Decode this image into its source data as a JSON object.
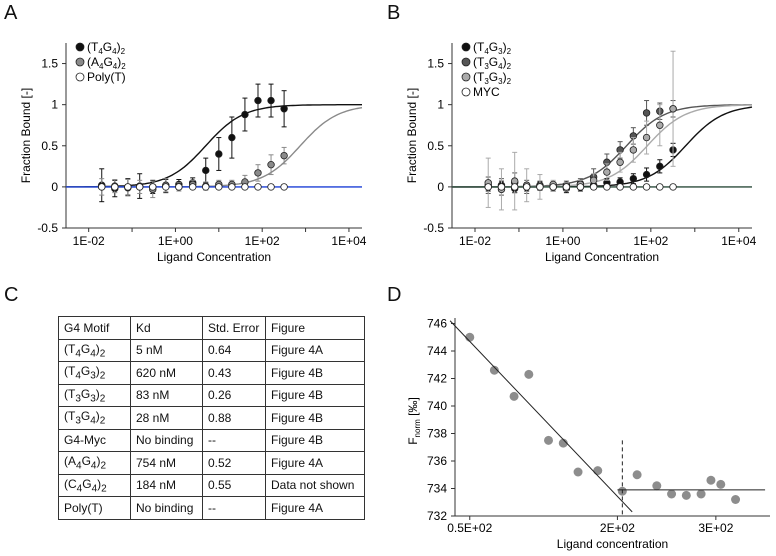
{
  "panels": {
    "a": "A",
    "b": "B",
    "c": "C",
    "d": "D"
  },
  "chart_data": [
    {
      "id": "A",
      "type": "scatter",
      "xlabel": "Ligand Concentration",
      "ylabel": "Fraction Bound [-]",
      "xscale": "log",
      "xlim": [
        0.003,
        20000
      ],
      "ylim": [
        -0.5,
        1.75
      ],
      "xticks": [
        0.01,
        1,
        100,
        10000
      ],
      "xtick_labels": [
        "1E-02",
        "1E+00",
        "1E+02",
        "1E+04"
      ],
      "yticks": [
        -0.5,
        0,
        0.5,
        1,
        1.5
      ],
      "ytick_labels": [
        "-0.5",
        "0",
        "0.5",
        "1",
        "1.5"
      ],
      "legend": "top-left",
      "series": [
        {
          "name": "(T4G4)2",
          "base": "(T",
          "s1": "4",
          "mid": "G",
          "s2": "4",
          "end": ")",
          "s3": "2",
          "color": "#111111",
          "marker": "#111111",
          "fit": {
            "kd": 5,
            "top": 1.0
          },
          "x": [
            0.02,
            0.04,
            0.08,
            0.15,
            0.3,
            0.6,
            1.2,
            2.5,
            5,
            10,
            20,
            40,
            80,
            160,
            320
          ],
          "y": [
            0.02,
            -0.02,
            0.0,
            0.01,
            0.0,
            0.01,
            0.03,
            0.05,
            0.2,
            0.4,
            0.6,
            0.88,
            1.05,
            1.05,
            0.95
          ],
          "err": [
            0.2,
            0.1,
            0.1,
            0.15,
            0.08,
            0.08,
            0.06,
            0.06,
            0.15,
            0.2,
            0.25,
            0.2,
            0.2,
            0.2,
            0.22
          ]
        },
        {
          "name": "(A4G4)2",
          "base": "(A",
          "s1": "4",
          "mid": "G",
          "s2": "4",
          "end": ")",
          "s3": "2",
          "color": "#8a8a8a",
          "marker": "#8a8a8a",
          "fit": {
            "kd": 754,
            "top": 1.0
          },
          "x": [
            0.02,
            0.04,
            0.08,
            0.15,
            0.3,
            0.6,
            1.2,
            2.5,
            5,
            10,
            20,
            40,
            80,
            160,
            320
          ],
          "y": [
            0.0,
            0.01,
            -0.01,
            0.0,
            -0.03,
            0.02,
            0.0,
            0.03,
            0.01,
            0.03,
            0.03,
            0.06,
            0.17,
            0.27,
            0.38
          ],
          "err": [
            0.1,
            0.08,
            0.1,
            0.08,
            0.1,
            0.08,
            0.05,
            0.05,
            0.05,
            0.05,
            0.05,
            0.08,
            0.1,
            0.12,
            0.1
          ]
        },
        {
          "name": "Poly(T)",
          "color": "#1a3fd6",
          "marker": "#ffffff",
          "fit": {
            "kd": null,
            "top": 0
          },
          "x": [
            0.02,
            0.04,
            0.08,
            0.15,
            0.3,
            0.6,
            1.2,
            2.5,
            5,
            10,
            20,
            40,
            80,
            160,
            320
          ],
          "y": [
            0,
            0,
            0,
            0,
            0,
            0,
            0,
            0,
            0,
            0,
            0,
            0,
            0,
            0,
            0
          ],
          "err": [
            0,
            0,
            0,
            0,
            0,
            0,
            0,
            0,
            0,
            0,
            0,
            0,
            0,
            0,
            0
          ]
        }
      ]
    },
    {
      "id": "B",
      "type": "scatter",
      "xlabel": "Ligand Concentration",
      "ylabel": "Fraction Bound [-]",
      "xscale": "log",
      "xlim": [
        0.003,
        20000
      ],
      "ylim": [
        -0.5,
        1.75
      ],
      "xticks": [
        0.01,
        1,
        100,
        10000
      ],
      "xtick_labels": [
        "1E-02",
        "1E+00",
        "1E+02",
        "1E+04"
      ],
      "yticks": [
        -0.5,
        0,
        0.5,
        1,
        1.5
      ],
      "ytick_labels": [
        "-0.5",
        "0",
        "0.5",
        "1",
        "1.5"
      ],
      "legend": "top-left",
      "series": [
        {
          "name": "(T4G3)2",
          "base": "(T",
          "s1": "4",
          "mid": "G",
          "s2": "3",
          "end": ")",
          "s3": "2",
          "color": "#111111",
          "marker": "#111111",
          "fit": {
            "kd": 620,
            "top": 1.0
          },
          "x": [
            0.02,
            0.04,
            0.08,
            0.15,
            0.3,
            0.6,
            1.2,
            2.5,
            5,
            10,
            20,
            40,
            80,
            160,
            320
          ],
          "y": [
            0.0,
            0.02,
            -0.02,
            0.0,
            0.01,
            0.0,
            -0.02,
            0.0,
            0.02,
            0.05,
            0.06,
            0.1,
            0.15,
            0.25,
            0.45
          ],
          "err": [
            0.05,
            0.05,
            0.05,
            0.05,
            0.05,
            0.05,
            0.05,
            0.05,
            0.05,
            0.05,
            0.05,
            0.06,
            0.08,
            0.08,
            0.08
          ]
        },
        {
          "name": "(T3G4)2",
          "base": "(T",
          "s1": "3",
          "mid": "G",
          "s2": "4",
          "end": ")",
          "s3": "2",
          "color": "#555555",
          "marker": "#555555",
          "fit": {
            "kd": 28,
            "top": 1.0
          },
          "x": [
            0.02,
            0.04,
            0.08,
            0.15,
            0.3,
            0.6,
            1.2,
            2.5,
            5,
            10,
            20,
            40,
            80,
            160,
            320
          ],
          "y": [
            0.02,
            0.0,
            0.05,
            0.0,
            0.02,
            0.0,
            0.02,
            0.04,
            0.12,
            0.3,
            0.45,
            0.62,
            0.9,
            0.92,
            0.95
          ],
          "err": [
            0.1,
            0.1,
            0.12,
            0.08,
            0.05,
            0.05,
            0.05,
            0.06,
            0.1,
            0.1,
            0.1,
            0.1,
            0.15,
            0.1,
            0.1
          ]
        },
        {
          "name": "(T3G3)2",
          "base": "(T",
          "s1": "3",
          "mid": "G",
          "s2": "3",
          "end": ")",
          "s3": "2",
          "color": "#aaaaaa",
          "marker": "#aaaaaa",
          "fit": {
            "kd": 83,
            "top": 1.0
          },
          "x": [
            0.02,
            0.04,
            0.08,
            0.15,
            0.3,
            0.6,
            1.2,
            2.5,
            5,
            10,
            20,
            40,
            80,
            160,
            320
          ],
          "y": [
            0.05,
            -0.03,
            0.07,
            0.02,
            0.0,
            0.03,
            0.0,
            0.03,
            0.08,
            0.18,
            0.3,
            0.45,
            0.6,
            0.75,
            0.95
          ],
          "err": [
            0.3,
            0.25,
            0.35,
            0.2,
            0.15,
            0.05,
            0.05,
            0.05,
            0.08,
            0.1,
            0.12,
            0.15,
            0.2,
            0.25,
            0.7
          ]
        },
        {
          "name": "MYC",
          "color": "#2a4a3a",
          "marker": "#ffffff",
          "fit": {
            "kd": null,
            "top": 0
          },
          "x": [
            0.02,
            0.04,
            0.08,
            0.15,
            0.3,
            0.6,
            1.2,
            2.5,
            5,
            10,
            20,
            40,
            80,
            160,
            320
          ],
          "y": [
            0,
            0,
            0,
            0,
            0,
            0,
            0,
            0,
            0,
            0,
            0,
            0,
            0,
            0,
            0
          ],
          "err": [
            0,
            0,
            0,
            0,
            0,
            0,
            0,
            0,
            0,
            0,
            0,
            0,
            0,
            0,
            0
          ]
        }
      ]
    },
    {
      "id": "D",
      "type": "scatter",
      "xlabel": "Ligand concentration",
      "ylabel": "F",
      "ylabel_sub": "norm",
      "ylabel_unit": " [‰]",
      "xlim": [
        35,
        355
      ],
      "ylim": [
        732,
        746.4
      ],
      "xticks": [
        50,
        200,
        300
      ],
      "xtick_labels": [
        "0.5E+02",
        "2E+02",
        "3E+02"
      ],
      "yticks": [
        732,
        734,
        736,
        738,
        740,
        742,
        744,
        746
      ],
      "ytick_labels": [
        "732",
        "734",
        "736",
        "738",
        "740",
        "742",
        "744",
        "746"
      ],
      "points": {
        "x": [
          50,
          75,
          95,
          110,
          130,
          145,
          160,
          180,
          205,
          220,
          240,
          255,
          270,
          285,
          295,
          305,
          320
        ],
        "y": [
          745.0,
          742.6,
          740.7,
          742.3,
          737.5,
          737.3,
          735.2,
          735.3,
          733.8,
          735.0,
          734.2,
          733.6,
          733.5,
          733.6,
          734.6,
          734.3,
          733.2
        ]
      },
      "fit_line": {
        "x": [
          30,
          215
        ],
        "y": [
          746.2,
          732.3
        ]
      },
      "plateau": {
        "x": [
          200,
          350
        ],
        "y": 733.9
      },
      "threshold_x": 205
    }
  ],
  "table": {
    "headers": [
      "G4 Motif",
      "Kd",
      "Std. Error",
      "Figure"
    ],
    "rows": [
      {
        "motif": {
          "base": "(T",
          "s1": "4",
          "mid": "G",
          "s2": "4",
          "end": ")",
          "s3": "2"
        },
        "kd": "5 nM",
        "err": "0.64",
        "fig": "Figure 4A"
      },
      {
        "motif": {
          "base": "(T",
          "s1": "4",
          "mid": "G",
          "s2": "3",
          "end": ")",
          "s3": "2"
        },
        "kd": "620 nM",
        "err": "0.43",
        "fig": "Figure 4B"
      },
      {
        "motif": {
          "base": "(T",
          "s1": "3",
          "mid": "G",
          "s2": "3",
          "end": ")",
          "s3": "2"
        },
        "kd": "83 nM",
        "err": "0.26",
        "fig": "Figure 4B"
      },
      {
        "motif": {
          "base": "(T",
          "s1": "3",
          "mid": "G",
          "s2": "4",
          "end": ")",
          "s3": "2"
        },
        "kd": "28 nM",
        "err": "0.88",
        "fig": "Figure 4B"
      },
      {
        "motif": {
          "base": "G4-Myc"
        },
        "kd": "No binding",
        "err": "--",
        "fig": "Figure 4B"
      },
      {
        "motif": {
          "base": "(A",
          "s1": "4",
          "mid": "G",
          "s2": "4",
          "end": ")",
          "s3": "2"
        },
        "kd": "754 nM",
        "err": "0.52",
        "fig": "Figure 4A"
      },
      {
        "motif": {
          "base": "(C",
          "s1": "4",
          "mid": "G",
          "s2": "4",
          "end": ")",
          "s3": "2"
        },
        "kd": "184 nM",
        "err": "0.55",
        "fig": "Data not shown"
      },
      {
        "motif": {
          "base": "Poly(T)"
        },
        "kd": "No binding",
        "err": "--",
        "fig": "Figure 4A"
      }
    ]
  }
}
